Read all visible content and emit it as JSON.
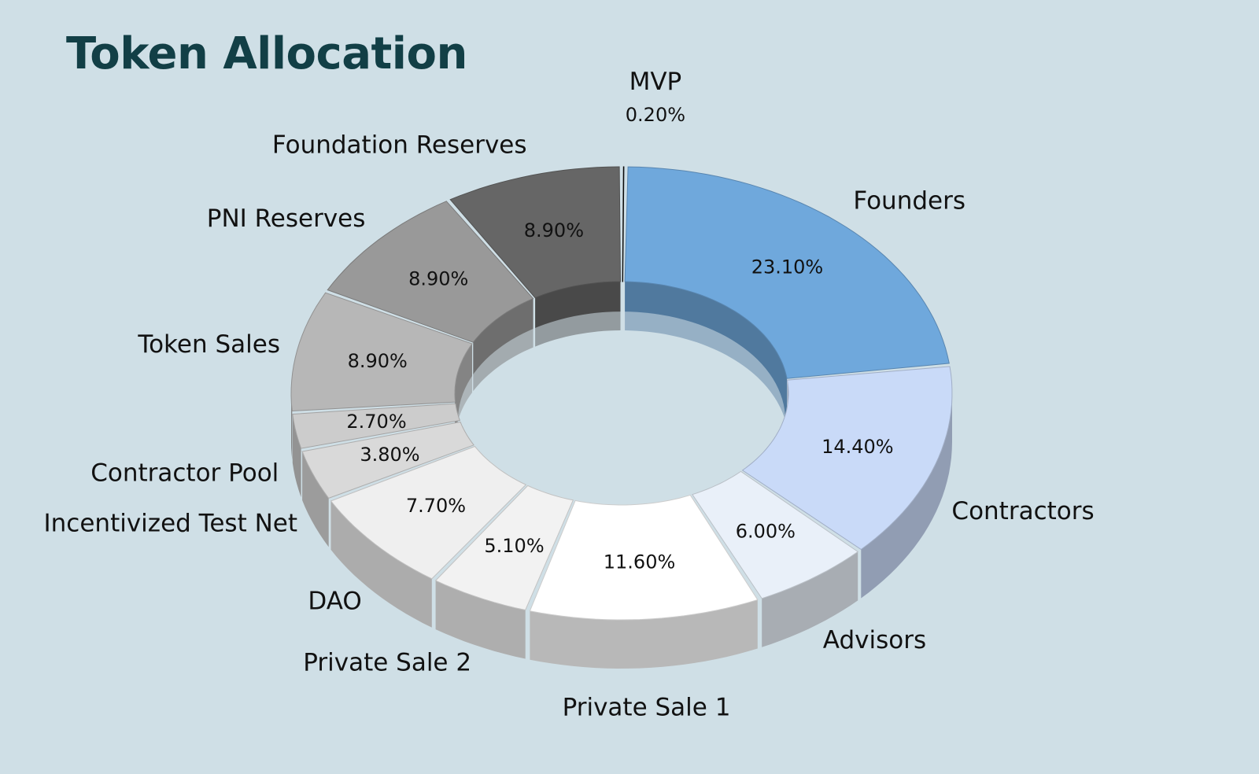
{
  "chart_data": {
    "type": "pie",
    "title": "Token Allocation",
    "style": "3d-donut",
    "slices": [
      {
        "label": "MVP",
        "value": 0.2,
        "value_label": "0.20%",
        "color": "#0d0d0d"
      },
      {
        "label": "Founders",
        "value": 23.1,
        "value_label": "23.10%",
        "color": "#6fa8dc"
      },
      {
        "label": "Contractors",
        "value": 14.4,
        "value_label": "14.40%",
        "color": "#c9daf8"
      },
      {
        "label": "Advisors",
        "value": 6.0,
        "value_label": "6.00%",
        "color": "#e9f0f9"
      },
      {
        "label": "Private Sale 1",
        "value": 11.6,
        "value_label": "11.60%",
        "color": "#ffffff"
      },
      {
        "label": "Private Sale 2",
        "value": 5.1,
        "value_label": "5.10%",
        "color": "#f2f2f2"
      },
      {
        "label": "DAO",
        "value": 7.7,
        "value_label": "7.70%",
        "color": "#efefef"
      },
      {
        "label": "Incentivized Test Net",
        "value": 3.8,
        "value_label": "3.80%",
        "color": "#d9d9d9"
      },
      {
        "label": "Contractor Pool",
        "value": 2.7,
        "value_label": "2.70%",
        "color": "#cccccc"
      },
      {
        "label": "Token Sales",
        "value": 8.9,
        "value_label": "8.90%",
        "color": "#b7b7b7"
      },
      {
        "label": "PNI Reserves",
        "value": 8.9,
        "value_label": "8.90%",
        "color": "#999999"
      },
      {
        "label": "Foundation Reserves",
        "value": 8.9,
        "value_label": "8.90%",
        "color": "#666666"
      }
    ]
  },
  "colors": {
    "background": "#cfdfe6",
    "title": "#123f46"
  }
}
